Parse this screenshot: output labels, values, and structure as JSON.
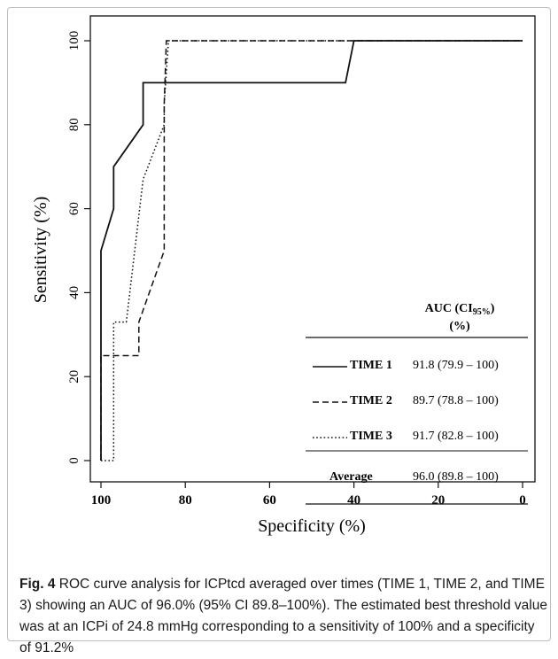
{
  "figure": {
    "caption_label": "Fig. 4",
    "caption_text": " ROC curve analysis for ICPtcd averaged over times (TIME 1, TIME 2, and TIME 3) showing an AUC of 96.0% (95% CI 89.8–100%). The estimated best threshold value was at an ICPi of 24.8 mmHg corresponding to a sensitivity of 100% and a specificity of 91.2%"
  },
  "chart_data": {
    "type": "line",
    "xlabel": "Specificity (%)",
    "ylabel": "Sensitivity (%)",
    "xlim": [
      100,
      0
    ],
    "ylim": [
      0,
      100
    ],
    "x_ticks": [
      100,
      80,
      60,
      40,
      20,
      0
    ],
    "y_ticks": [
      0,
      20,
      40,
      60,
      80,
      100
    ],
    "series": [
      {
        "name": "TIME 1",
        "line_style": "solid",
        "color": "#111111",
        "x": [
          100,
          100,
          97,
          97,
          90,
          90,
          42,
          40,
          0
        ],
        "y": [
          0,
          50,
          60,
          70,
          80,
          90,
          90,
          100,
          100
        ]
      },
      {
        "name": "TIME 2",
        "line_style": "dashed",
        "color": "#111111",
        "x": [
          100,
          100,
          91,
          91,
          85,
          85,
          84.5,
          0
        ],
        "y": [
          0,
          25,
          25,
          33,
          50,
          85,
          100,
          100
        ]
      },
      {
        "name": "TIME 3",
        "line_style": "dotted",
        "color": "#111111",
        "x": [
          100,
          97,
          97,
          94,
          90,
          85,
          85,
          84,
          0
        ],
        "y": [
          0,
          0,
          33,
          33,
          67,
          80,
          85,
          100,
          100
        ]
      }
    ],
    "legend_table": {
      "header_line1": "AUC (CI",
      "header_sub": "95%",
      "header_line1_end": ")",
      "header_line2": "(%)",
      "rows": [
        {
          "style": "solid",
          "label": "TIME 1",
          "value": "91.8 (79.9 – 100)"
        },
        {
          "style": "dashed",
          "label": "TIME 2",
          "value": "89.7 (78.8 – 100)"
        },
        {
          "style": "dotted",
          "label": "TIME 3",
          "value": "91.7 (82.8 – 100)"
        },
        {
          "style": "none",
          "label": "Average",
          "value": "96.0 (89.8 – 100)"
        }
      ]
    }
  }
}
